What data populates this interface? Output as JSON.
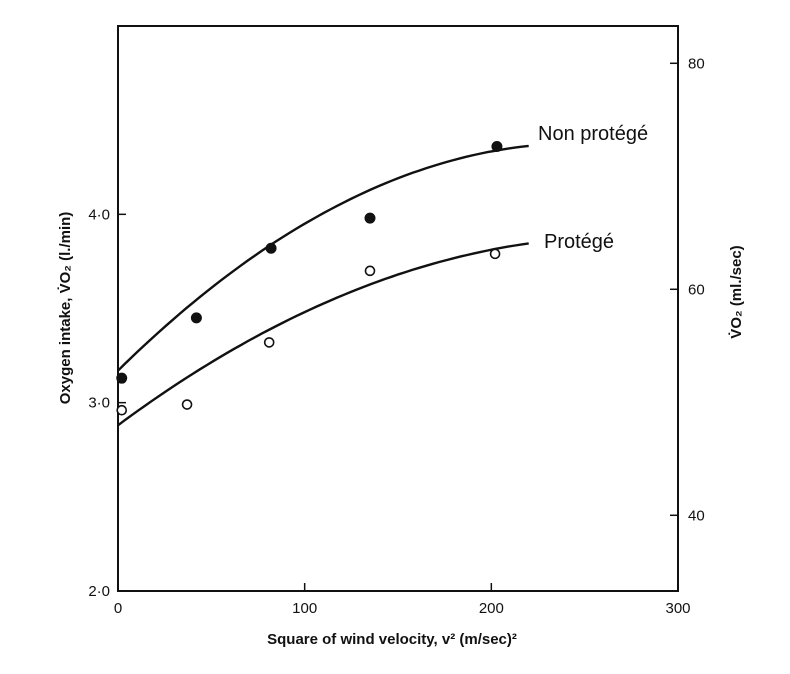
{
  "chart_data": {
    "type": "scatter",
    "title": "",
    "xlabel": "Square of wind velocity, v² (m/sec)²",
    "ylabel_left": "Oxygen intake, V̇O₂ (l./min)",
    "ylabel_right": "V̇O₂ (ml./sec)",
    "xlim": [
      0,
      300
    ],
    "ylim_left": [
      2.0,
      5.0
    ],
    "ylim_right": [
      33.3,
      83.3
    ],
    "x_ticks": [
      "0",
      "100",
      "200",
      "300"
    ],
    "y_left_ticks": [
      "2·0",
      "3·0",
      "4·0"
    ],
    "y_right_ticks": [
      "40",
      "60",
      "80"
    ],
    "grid": false,
    "series": [
      {
        "name": "Non protégé",
        "marker": "filled-circle",
        "points": [
          {
            "x": 2,
            "y": 3.13
          },
          {
            "x": 42,
            "y": 3.45
          },
          {
            "x": 82,
            "y": 3.82
          },
          {
            "x": 135,
            "y": 3.98
          },
          {
            "x": 203,
            "y": 4.36
          }
        ],
        "curve": {
          "x_start": 0,
          "x_end": 220,
          "a": 3.17,
          "b": 0.00978,
          "c": -1.98e-05
        }
      },
      {
        "name": "Protégé",
        "marker": "open-circle",
        "points": [
          {
            "x": 2,
            "y": 2.96
          },
          {
            "x": 37,
            "y": 2.99
          },
          {
            "x": 81,
            "y": 3.32
          },
          {
            "x": 135,
            "y": 3.7
          },
          {
            "x": 202,
            "y": 3.79
          }
        ],
        "curve": {
          "x_start": 0,
          "x_end": 220,
          "a": 2.88,
          "b": 0.00736,
          "c": -1.35e-05
        }
      }
    ]
  }
}
